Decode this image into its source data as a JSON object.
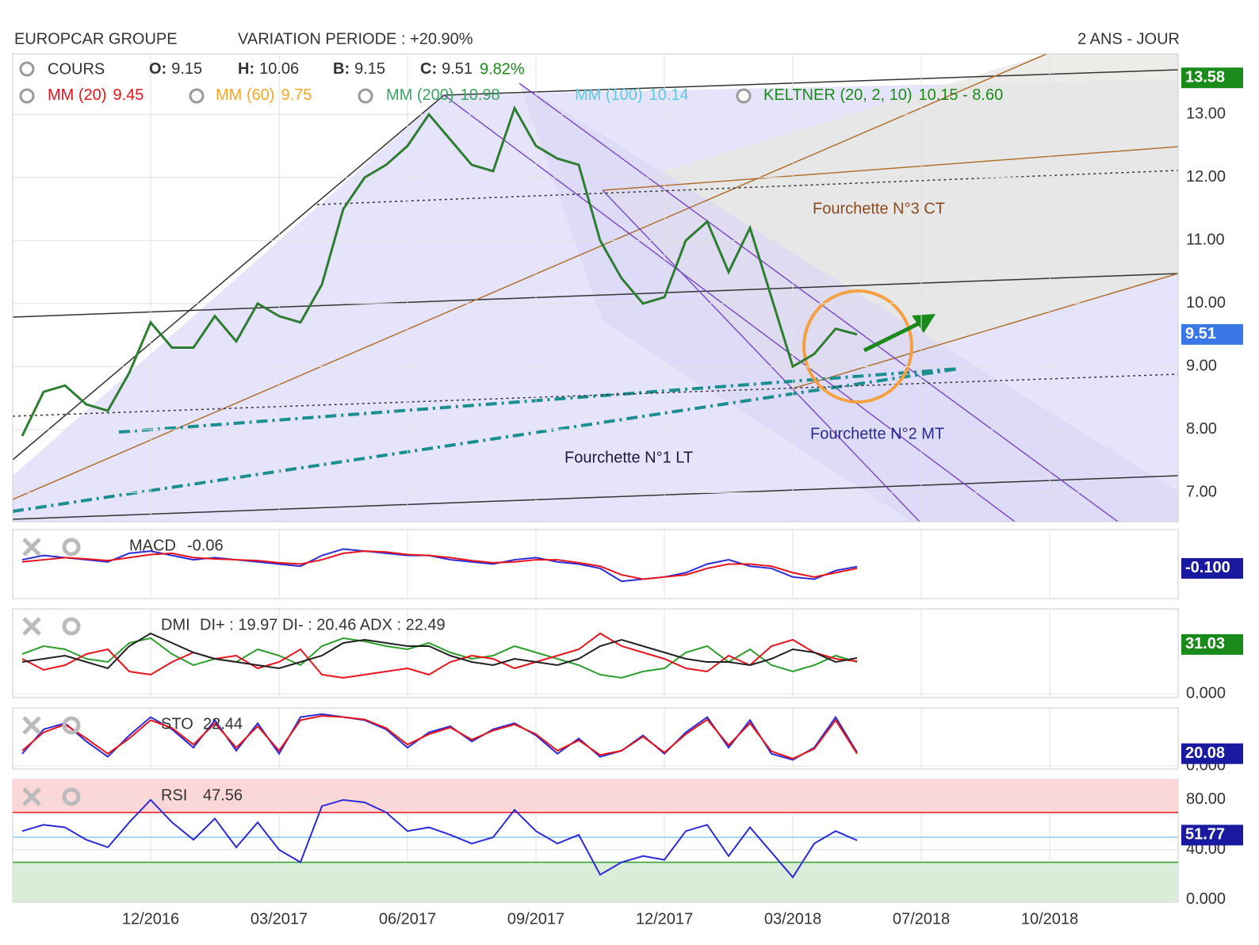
{
  "header": {
    "title": "EUROPCAR GROUPE",
    "variation": "VARIATION PERIODE : +20.90%",
    "period": "2 ANS - JOUR"
  },
  "chart_data": [
    {
      "type": "line",
      "legend_name": "COURS",
      "ohlc": [
        {
          "label": "O:",
          "value": 9.15
        },
        {
          "label": "H:",
          "value": 10.06
        },
        {
          "label": "B:",
          "value": 9.15
        },
        {
          "label": "C:",
          "value": 9.51
        }
      ],
      "change": "9.82%",
      "indicators": [
        {
          "name": "MM (20)",
          "value": 9.45,
          "color": "#e8141c"
        },
        {
          "name": "MM (60)",
          "value": 9.75,
          "color": "#f5a623"
        },
        {
          "name": "MM (200)",
          "value": 10.98,
          "color": "#3aa565"
        },
        {
          "name": "MM (100)",
          "value": 10.14,
          "color": "#5bc8e6"
        },
        {
          "name": "KELTNER (20, 2, 10)",
          "value": "10.15 - 8.60",
          "color": "#1a8a1a"
        }
      ],
      "annotations": [
        "Fourchette N°1 LT",
        "Fourchette N°2 MT",
        "Fourchette N°3 CT"
      ],
      "categories": [
        null,
        null,
        null,
        null,
        null,
        null,
        "12/2016",
        null,
        null,
        null,
        null,
        null,
        "03/2017",
        null,
        null,
        null,
        null,
        null,
        "06/2017",
        null,
        null,
        null,
        null,
        null,
        "09/2017",
        null,
        null,
        null,
        null,
        null,
        "12/2017",
        null,
        null,
        null,
        null,
        null,
        "03/2018",
        null,
        null,
        null,
        null,
        null,
        "07/2018",
        null,
        null,
        null,
        null,
        null,
        "10/2018",
        null,
        null,
        null,
        null,
        null,
        null
      ],
      "series": [
        {
          "name": "COURS",
          "color": "#2e7d32",
          "values": [
            7.9,
            8.6,
            8.7,
            8.4,
            8.3,
            8.9,
            9.7,
            9.3,
            9.3,
            9.8,
            9.4,
            10.0,
            9.8,
            9.7,
            10.3,
            11.5,
            12.0,
            12.2,
            12.5,
            13.0,
            12.6,
            12.2,
            12.1,
            13.1,
            12.5,
            12.3,
            12.2,
            11.0,
            10.4,
            10.0,
            10.1,
            11.0,
            11.3,
            10.5,
            11.2,
            10.1,
            9.0,
            9.2,
            9.6,
            9.51,
            null,
            null,
            null,
            null,
            null,
            null,
            null,
            null,
            null,
            null,
            null,
            null,
            null,
            null,
            null
          ]
        }
      ],
      "ylim": [
        6.54,
        13.96
      ],
      "yticks": [
        {
          "value": 7,
          "label": "7.00"
        },
        {
          "value": 8,
          "label": "8.00"
        },
        {
          "value": 9,
          "label": "9.00"
        },
        {
          "value": 10,
          "label": "10.00"
        },
        {
          "value": 11,
          "label": "11.00"
        },
        {
          "value": 12,
          "label": "12.00"
        },
        {
          "value": 13,
          "label": "13.00"
        }
      ],
      "tags": [
        {
          "value": 13.58,
          "color": "#1a8a1a"
        },
        {
          "value": 9.51,
          "color": "#3b78e7"
        }
      ],
      "grid": true
    },
    {
      "type": "line",
      "name": "MACD",
      "value": -0.06,
      "series": [
        {
          "name": "MACD",
          "color": "#2b2bd9",
          "values": [
            0.1,
            0.2,
            0.15,
            0.1,
            0.05,
            0.25,
            0.3,
            0.2,
            0.1,
            0.15,
            0.1,
            0.05,
            0.0,
            -0.05,
            0.2,
            0.35,
            0.3,
            0.25,
            0.2,
            0.2,
            0.1,
            0.05,
            0.0,
            0.1,
            0.15,
            0.05,
            0.0,
            -0.1,
            -0.4,
            -0.35,
            -0.3,
            -0.2,
            0.0,
            0.1,
            -0.05,
            -0.1,
            -0.3,
            -0.35,
            -0.15,
            -0.06,
            null,
            null,
            null,
            null,
            null,
            null,
            null,
            null,
            null,
            null,
            null,
            null,
            null,
            null,
            null
          ]
        },
        {
          "name": "Signal",
          "color": "#e8141c",
          "values": [
            0.05,
            0.1,
            0.15,
            0.12,
            0.08,
            0.15,
            0.22,
            0.25,
            0.15,
            0.12,
            0.1,
            0.08,
            0.03,
            0.0,
            0.1,
            0.25,
            0.3,
            0.28,
            0.22,
            0.2,
            0.15,
            0.08,
            0.03,
            0.05,
            0.1,
            0.1,
            0.03,
            -0.05,
            -0.25,
            -0.35,
            -0.3,
            -0.25,
            -0.1,
            0.0,
            0.0,
            -0.05,
            -0.2,
            -0.3,
            -0.2,
            -0.1,
            null,
            null,
            null,
            null,
            null,
            null,
            null,
            null,
            null,
            null,
            null,
            null,
            null,
            null,
            null
          ]
        }
      ],
      "ylim": [
        -0.8,
        0.8
      ],
      "yticks": [],
      "tags": [
        {
          "value": -0.1,
          "label": "-0.100",
          "color": "#1a1aa0"
        }
      ]
    },
    {
      "type": "line",
      "name": "DMI",
      "value": "DI+ : 19.97 DI- : 20.46 ADX : 22.49",
      "series": [
        {
          "name": "DI+",
          "color": "#2e9e2e",
          "values": [
            25,
            30,
            28,
            22,
            20,
            32,
            35,
            25,
            18,
            22,
            20,
            28,
            24,
            18,
            30,
            35,
            33,
            30,
            28,
            32,
            26,
            22,
            24,
            30,
            26,
            22,
            18,
            12,
            10,
            14,
            16,
            26,
            30,
            20,
            28,
            18,
            14,
            18,
            24,
            19.97,
            null,
            null,
            null,
            null,
            null,
            null,
            null,
            null,
            null,
            null,
            null,
            null,
            null,
            null,
            null
          ]
        },
        {
          "name": "DI-",
          "color": "#e8141c",
          "values": [
            22,
            15,
            18,
            25,
            28,
            14,
            12,
            20,
            26,
            22,
            24,
            16,
            20,
            28,
            12,
            10,
            12,
            14,
            16,
            12,
            20,
            24,
            22,
            16,
            20,
            24,
            28,
            38,
            30,
            26,
            22,
            16,
            14,
            24,
            18,
            30,
            34,
            26,
            22,
            20.46,
            null,
            null,
            null,
            null,
            null,
            null,
            null,
            null,
            null,
            null,
            null,
            null,
            null,
            null,
            null
          ]
        },
        {
          "name": "ADX",
          "color": "#222222",
          "values": [
            20,
            22,
            24,
            20,
            16,
            30,
            38,
            32,
            26,
            22,
            20,
            18,
            16,
            20,
            24,
            32,
            34,
            32,
            30,
            30,
            24,
            20,
            18,
            22,
            20,
            18,
            22,
            30,
            34,
            30,
            26,
            22,
            20,
            20,
            18,
            22,
            28,
            26,
            20,
            22.49,
            null,
            null,
            null,
            null,
            null,
            null,
            null,
            null,
            null,
            null,
            null,
            null,
            null,
            null,
            null
          ]
        }
      ],
      "ylim": [
        -2.5,
        53.5
      ],
      "yticks": [
        {
          "value": 0,
          "label": "0.000"
        }
      ],
      "tags": [
        {
          "value": 31.03,
          "color": "#1a8a1a"
        }
      ]
    },
    {
      "type": "line",
      "name": "STO",
      "value": 22.44,
      "series": [
        {
          "name": "%K",
          "color": "#2b2bd9",
          "values": [
            20,
            60,
            70,
            40,
            15,
            50,
            80,
            60,
            30,
            75,
            25,
            70,
            20,
            80,
            85,
            80,
            75,
            60,
            30,
            55,
            65,
            40,
            60,
            70,
            50,
            20,
            45,
            15,
            25,
            50,
            20,
            55,
            80,
            30,
            75,
            20,
            10,
            30,
            80,
            22.44,
            null,
            null,
            null,
            null,
            null,
            null,
            null,
            null,
            null,
            null,
            null,
            null,
            null,
            null,
            null
          ]
        },
        {
          "name": "%D",
          "color": "#e8141c",
          "values": [
            25,
            55,
            68,
            45,
            20,
            45,
            75,
            62,
            35,
            70,
            30,
            65,
            25,
            75,
            82,
            80,
            76,
            62,
            35,
            52,
            63,
            43,
            58,
            68,
            52,
            25,
            42,
            18,
            25,
            48,
            22,
            52,
            76,
            34,
            70,
            24,
            12,
            28,
            75,
            20.08,
            null,
            null,
            null,
            null,
            null,
            null,
            null,
            null,
            null,
            null,
            null,
            null,
            null,
            null,
            null
          ]
        }
      ],
      "ylim": [
        -5,
        95
      ],
      "yticks": [
        {
          "value": 0,
          "label": "0.000"
        }
      ],
      "tags": [
        {
          "value": 20.08,
          "color": "#1a1aa0"
        }
      ]
    },
    {
      "type": "line",
      "name": "RSI",
      "value": 47.56,
      "series": [
        {
          "name": "RSI",
          "color": "#2b2bd9",
          "values": [
            55,
            60,
            58,
            48,
            42,
            62,
            80,
            62,
            48,
            65,
            42,
            62,
            40,
            30,
            75,
            80,
            78,
            70,
            55,
            58,
            52,
            45,
            50,
            72,
            55,
            45,
            52,
            20,
            30,
            35,
            32,
            55,
            60,
            35,
            58,
            38,
            18,
            45,
            55,
            47.56,
            null,
            null,
            null,
            null,
            null,
            null,
            null,
            null,
            null,
            null,
            null,
            null,
            null,
            null,
            null
          ]
        }
      ],
      "levels": [
        {
          "value": 70,
          "color": "#e8141c"
        },
        {
          "value": 50,
          "color": "#8fc8f0"
        },
        {
          "value": 30,
          "color": "#2e9e2e"
        }
      ],
      "ylim": [
        -2,
        96.5
      ],
      "yticks": [
        {
          "value": 0,
          "label": "0.000"
        },
        {
          "value": 40,
          "label": "40.00"
        },
        {
          "value": 80,
          "label": "80.00"
        }
      ],
      "tags": [
        {
          "value": 51.77,
          "color": "#1a1aa0"
        }
      ]
    }
  ]
}
